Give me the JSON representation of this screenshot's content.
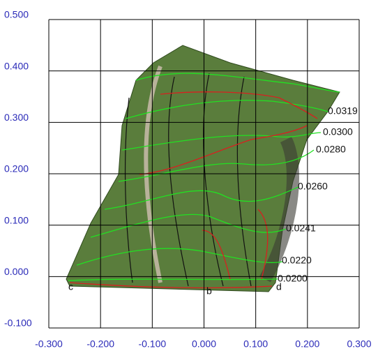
{
  "chart_data": {
    "type": "contour",
    "xlim": [
      -0.3,
      0.3
    ],
    "ylim": [
      -0.1,
      0.5
    ],
    "xticks": [
      {
        "value": -0.3,
        "label": "-0.300"
      },
      {
        "value": -0.2,
        "label": "-0.200"
      },
      {
        "value": -0.1,
        "label": "-0.100"
      },
      {
        "value": 0,
        "label": "0.000"
      },
      {
        "value": 0.1,
        "label": "0.100"
      },
      {
        "value": 0.2,
        "label": "0.200"
      },
      {
        "value": 0.3,
        "label": "0.300"
      }
    ],
    "yticks": [
      {
        "value": -0.1,
        "label": "-0.100"
      },
      {
        "value": 0,
        "label": "0.000"
      },
      {
        "value": 0.1,
        "label": "0.100"
      },
      {
        "value": 0.2,
        "label": "0.200"
      },
      {
        "value": 0.3,
        "label": "0.300"
      },
      {
        "value": 0.4,
        "label": "0.400"
      },
      {
        "value": 0.5,
        "label": "0.500"
      }
    ],
    "grid": true,
    "contour_labels": [
      "0.0319",
      "0.0300",
      "0.0280",
      "0.0260",
      "0.0241",
      "0.0220",
      "0.0200"
    ],
    "point_labels": [
      "c",
      "b",
      "d"
    ]
  }
}
